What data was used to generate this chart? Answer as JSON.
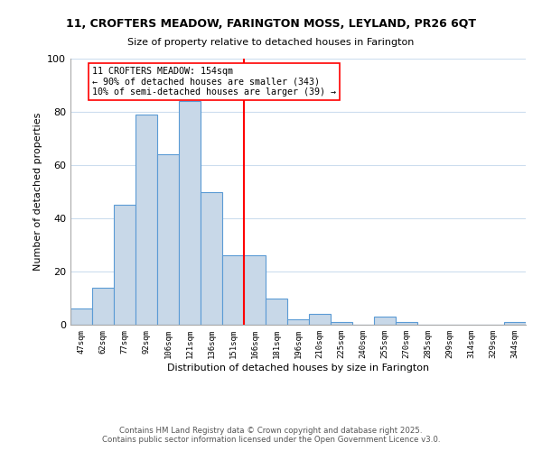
{
  "title_line1": "11, CROFTERS MEADOW, FARINGTON MOSS, LEYLAND, PR26 6QT",
  "title_line2": "Size of property relative to detached houses in Farington",
  "xlabel": "Distribution of detached houses by size in Farington",
  "ylabel": "Number of detached properties",
  "bar_labels": [
    "47sqm",
    "62sqm",
    "77sqm",
    "92sqm",
    "106sqm",
    "121sqm",
    "136sqm",
    "151sqm",
    "166sqm",
    "181sqm",
    "196sqm",
    "210sqm",
    "225sqm",
    "240sqm",
    "255sqm",
    "270sqm",
    "285sqm",
    "299sqm",
    "314sqm",
    "329sqm",
    "344sqm"
  ],
  "bar_heights": [
    6,
    14,
    45,
    79,
    64,
    84,
    50,
    26,
    26,
    10,
    2,
    4,
    1,
    0,
    3,
    1,
    0,
    0,
    0,
    0,
    1
  ],
  "bar_color": "#c8d8e8",
  "bar_edge_color": "#5b9bd5",
  "vline_x_index": 7.5,
  "vline_color": "red",
  "annotation_title": "11 CROFTERS MEADOW: 154sqm",
  "annotation_line1": "← 90% of detached houses are smaller (343)",
  "annotation_line2": "10% of semi-detached houses are larger (39) →",
  "annotation_box_color": "white",
  "annotation_box_edge_color": "red",
  "ylim": [
    0,
    100
  ],
  "footer_line1": "Contains HM Land Registry data © Crown copyright and database right 2025.",
  "footer_line2": "Contains public sector information licensed under the Open Government Licence v3.0.",
  "bg_color": "white",
  "grid_color": "#ccddee"
}
